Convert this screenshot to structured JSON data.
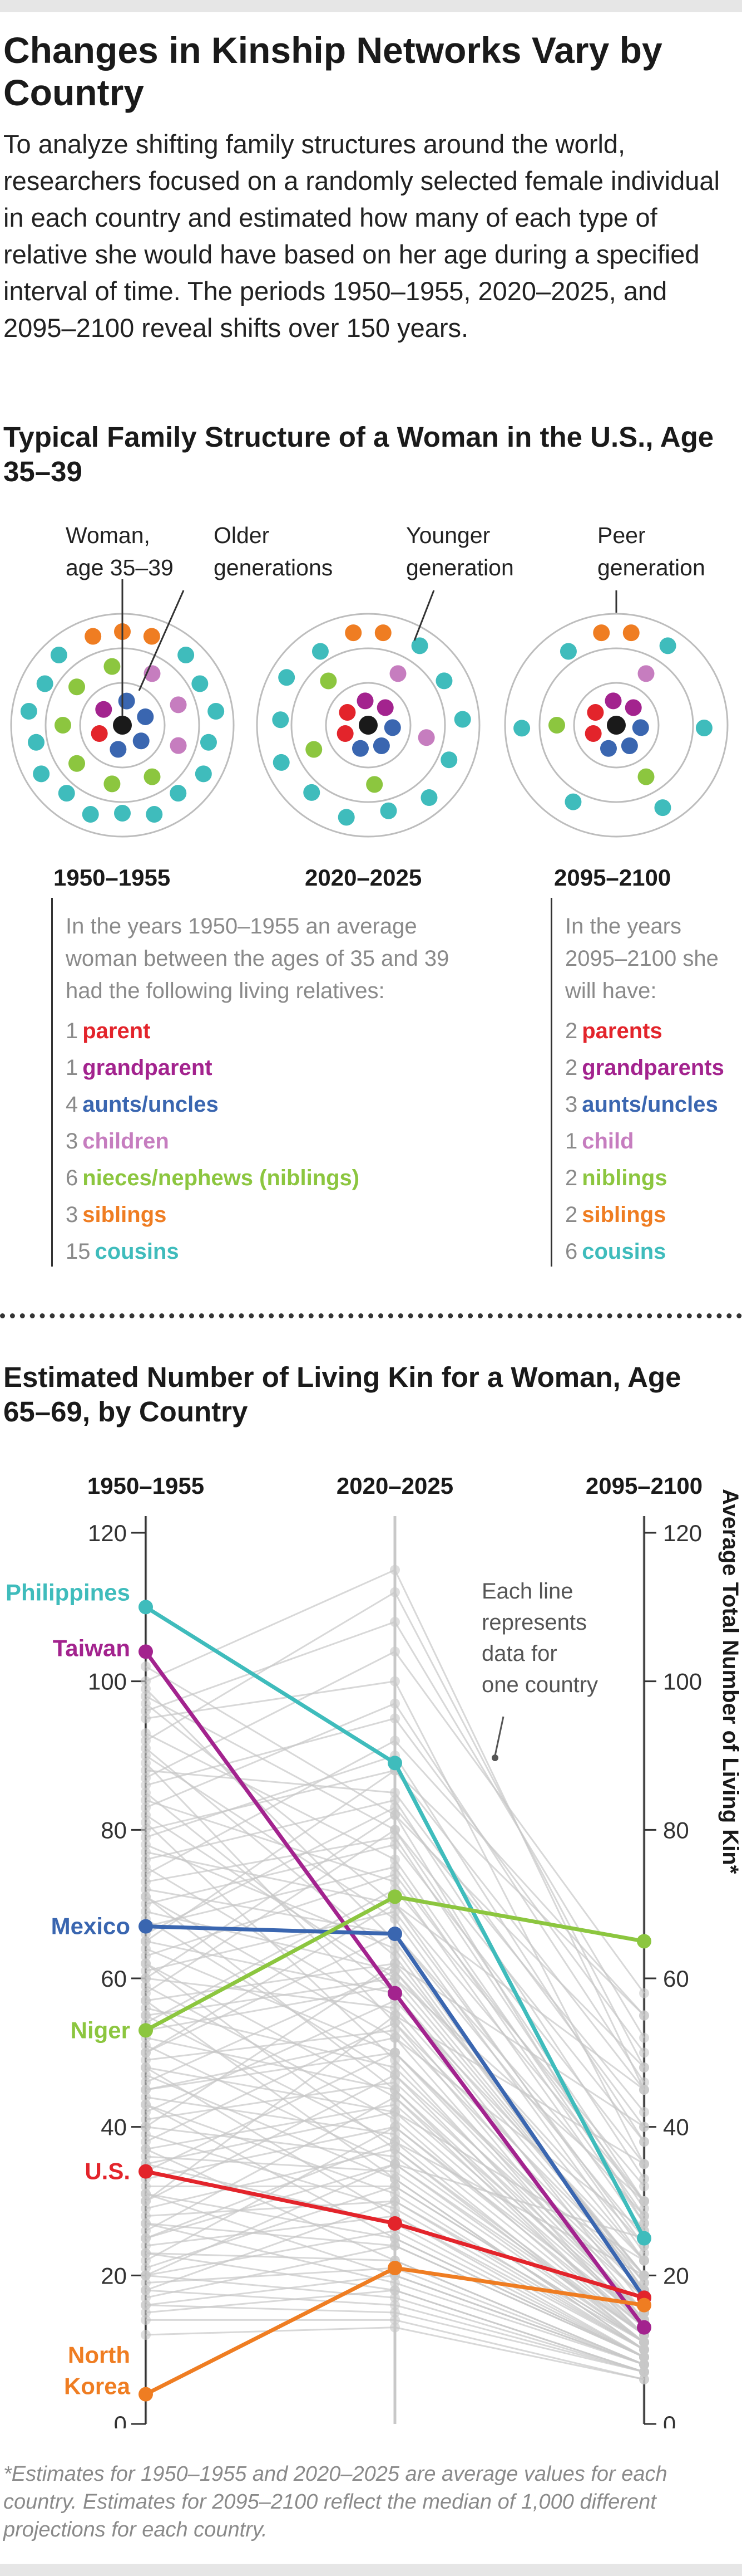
{
  "title": "Changes in Kinship Networks Vary by Country",
  "intro": "To analyze shifting family structures around the world, researchers focused on a randomly selected female individual in each country and estimated how many of each type of relative she would have based on her age during a specified interval of time. The periods 1950–1955, 2020–2025, and 2095–2100 reveal shifts over 150 years.",
  "family": {
    "title": "Typical Family Structure of a Woman in the U.S., Age 35–39",
    "annotations": {
      "woman": "Woman, age 35–39",
      "older": "Older generations",
      "younger": "Younger generation",
      "peer": "Peer generation"
    },
    "periods": [
      "1950–1955",
      "2020–2025",
      "2095–2100"
    ],
    "colors": {
      "parent": "#e3242b",
      "grandparent": "#a3238e",
      "aunt": "#3a66b0",
      "child": "#c67dbf",
      "nibling": "#8cc63f",
      "sibling": "#ef7d22",
      "cousin": "#3fbcbc",
      "woman": "#1a1a1a"
    },
    "legend_1950": {
      "intro": "In the years 1950–1955 an average woman between the ages of 35 and 39 had the following living relatives:",
      "items": [
        {
          "num": "1",
          "label": "parent",
          "key": "parent"
        },
        {
          "num": "1",
          "label": "grandparent",
          "key": "grandparent"
        },
        {
          "num": "4",
          "label": "aunts/uncles",
          "key": "aunt"
        },
        {
          "num": "3",
          "label": "children",
          "key": "child"
        },
        {
          "num": "6",
          "label": "nieces/nephews (niblings)",
          "key": "nibling"
        },
        {
          "num": "3",
          "label": "siblings",
          "key": "sibling"
        },
        {
          "num": "15",
          "label": "cousins",
          "key": "cousin"
        }
      ]
    },
    "legend_2095": {
      "intro": "In the years 2095–2100 she will have:",
      "items": [
        {
          "num": "2",
          "label": "parents",
          "key": "parent"
        },
        {
          "num": "2",
          "label": "grandparents",
          "key": "grandparent"
        },
        {
          "num": "3",
          "label": "aunts/uncles",
          "key": "aunt"
        },
        {
          "num": "1",
          "label": "child",
          "key": "child"
        },
        {
          "num": "2",
          "label": "niblings",
          "key": "nibling"
        },
        {
          "num": "2",
          "label": "siblings",
          "key": "sibling"
        },
        {
          "num": "6",
          "label": "cousins",
          "key": "cousin"
        }
      ]
    }
  },
  "chart_title": "Estimated Number of Living Kin for a Woman, Age 65–69, by Country",
  "chart_data": {
    "type": "line",
    "categories": [
      "1950–1955",
      "2020–2025",
      "2095–2100"
    ],
    "ylabel": "Average Total Number of Living Kin*",
    "ylim": [
      0,
      120
    ],
    "yticks": [
      0,
      20,
      40,
      60,
      80,
      100,
      120
    ],
    "annotation": "Each line represents data for one country",
    "highlighted_series": [
      {
        "name": "Philippines",
        "color": "#3fbcbc",
        "values": [
          110,
          89,
          25
        ]
      },
      {
        "name": "Taiwan",
        "color": "#a3238e",
        "values": [
          104,
          58,
          13
        ]
      },
      {
        "name": "Mexico",
        "color": "#3a66b0",
        "values": [
          67,
          66,
          17
        ]
      },
      {
        "name": "Niger",
        "color": "#8cc63f",
        "values": [
          53,
          71,
          65
        ]
      },
      {
        "name": "U.S.",
        "color": "#e3242b",
        "values": [
          34,
          27,
          17
        ]
      },
      {
        "name": "North Korea",
        "color": "#ef7d22",
        "values": [
          4,
          21,
          16
        ]
      }
    ],
    "background_series_color": "#c8c8c8",
    "background_series": [
      [
        98,
        80,
        30
      ],
      [
        95,
        100,
        35
      ],
      [
        93,
        76,
        28
      ],
      [
        90,
        68,
        22
      ],
      [
        88,
        85,
        40
      ],
      [
        86,
        95,
        50
      ],
      [
        84,
        73,
        26
      ],
      [
        82,
        60,
        20
      ],
      [
        80,
        88,
        45
      ],
      [
        78,
        64,
        18
      ],
      [
        77,
        70,
        30
      ],
      [
        75,
        55,
        15
      ],
      [
        74,
        92,
        55
      ],
      [
        72,
        66,
        25
      ],
      [
        71,
        52,
        14
      ],
      [
        70,
        78,
        35
      ],
      [
        69,
        61,
        20
      ],
      [
        68,
        47,
        13
      ],
      [
        66,
        83,
        42
      ],
      [
        65,
        58,
        19
      ],
      [
        64,
        50,
        15
      ],
      [
        63,
        74,
        30
      ],
      [
        62,
        44,
        12
      ],
      [
        61,
        69,
        24
      ],
      [
        60,
        56,
        18
      ],
      [
        59,
        41,
        12
      ],
      [
        58,
        80,
        38
      ],
      [
        57,
        62,
        22
      ],
      [
        56,
        48,
        15
      ],
      [
        55,
        38,
        11
      ],
      [
        54,
        72,
        32
      ],
      [
        53,
        59,
        20
      ],
      [
        52,
        45,
        14
      ],
      [
        51,
        35,
        11
      ],
      [
        50,
        66,
        28
      ],
      [
        49,
        53,
        18
      ],
      [
        48,
        42,
        13
      ],
      [
        47,
        33,
        10
      ],
      [
        46,
        61,
        24
      ],
      [
        45,
        50,
        17
      ],
      [
        44,
        39,
        12
      ],
      [
        43,
        31,
        10
      ],
      [
        42,
        57,
        22
      ],
      [
        41,
        46,
        15
      ],
      [
        40,
        36,
        12
      ],
      [
        39,
        29,
        10
      ],
      [
        38,
        54,
        20
      ],
      [
        37,
        43,
        14
      ],
      [
        36,
        34,
        11
      ],
      [
        35,
        27,
        9
      ],
      [
        34,
        50,
        18
      ],
      [
        33,
        40,
        13
      ],
      [
        32,
        32,
        11
      ],
      [
        31,
        25,
        9
      ],
      [
        30,
        47,
        17
      ],
      [
        29,
        37,
        12
      ],
      [
        28,
        30,
        10
      ],
      [
        27,
        24,
        9
      ],
      [
        26,
        44,
        15
      ],
      [
        25,
        35,
        12
      ],
      [
        24,
        28,
        10
      ],
      [
        23,
        22,
        8
      ],
      [
        22,
        40,
        14
      ],
      [
        21,
        32,
        11
      ],
      [
        20,
        26,
        9
      ],
      [
        19,
        21,
        8
      ],
      [
        18,
        30,
        11
      ],
      [
        17,
        24,
        9
      ],
      [
        16,
        20,
        8
      ],
      [
        15,
        18,
        7
      ],
      [
        100,
        115,
        45
      ],
      [
        96,
        108,
        52
      ],
      [
        92,
        112,
        48
      ],
      [
        87,
        104,
        58
      ],
      [
        83,
        97,
        46
      ],
      [
        79,
        90,
        38
      ],
      [
        76,
        84,
        33
      ],
      [
        73,
        79,
        29
      ],
      [
        67,
        75,
        27
      ],
      [
        85,
        58,
        16
      ],
      [
        91,
        63,
        19
      ],
      [
        97,
        70,
        23
      ],
      [
        102,
        82,
        27
      ],
      [
        99,
        65,
        18
      ],
      [
        89,
        54,
        14
      ],
      [
        81,
        49,
        13
      ],
      [
        71,
        45,
        12
      ],
      [
        62,
        37,
        11
      ],
      [
        57,
        33,
        10
      ],
      [
        48,
        28,
        9
      ],
      [
        43,
        25,
        9
      ],
      [
        37,
        22,
        8
      ],
      [
        31,
        20,
        8
      ],
      [
        27,
        19,
        8
      ],
      [
        23,
        18,
        7
      ],
      [
        20,
        17,
        7
      ],
      [
        18,
        16,
        7
      ],
      [
        16,
        15,
        7
      ],
      [
        14,
        14,
        6
      ],
      [
        12,
        13,
        6
      ],
      [
        55,
        60,
        30
      ],
      [
        45,
        52,
        26
      ],
      [
        35,
        42,
        22
      ],
      [
        25,
        38,
        20
      ],
      [
        30,
        55,
        35
      ],
      [
        40,
        62,
        40
      ],
      [
        50,
        70,
        45
      ],
      [
        60,
        82,
        48
      ],
      [
        65,
        88,
        55
      ],
      [
        20,
        35,
        25
      ]
    ]
  },
  "footnote": "*Estimates for 1950–1955 and 2020–2025 are average values for each country. Estimates for 2095–2100 reflect the median of 1,000 different projections for each country."
}
